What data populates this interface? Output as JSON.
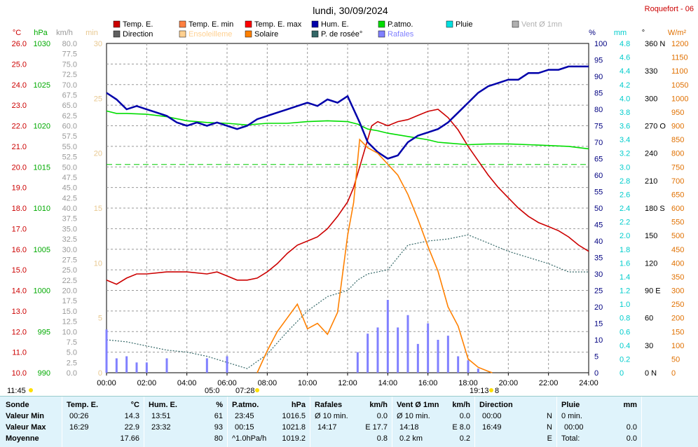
{
  "title": "lundi, 30/09/2024",
  "station": "Roquefort - 06",
  "legend": [
    {
      "label": "Temp. E.",
      "color": "#cc0000"
    },
    {
      "label": "Temp. E. min",
      "color": "#ff8040"
    },
    {
      "label": "Temp. E. max",
      "color": "#ff0000"
    },
    {
      "label": "Hum. E.",
      "color": "#0000aa"
    },
    {
      "label": "P.atmo.",
      "color": "#00dd00"
    },
    {
      "label": "Pluie",
      "color": "#00e0e0"
    },
    {
      "label": "Vent Ø 1mn",
      "color": "#b0b0b0"
    },
    {
      "label": "Direction",
      "color": "#606060"
    },
    {
      "label": "Ensoleilleme",
      "color": "#ffd090"
    },
    {
      "label": "Solaire",
      "color": "#ff8000"
    },
    {
      "label": "P. de rosée°",
      "color": "#336666"
    },
    {
      "label": "Rafales",
      "color": "#8080ff"
    }
  ],
  "axis_units": {
    "temp": "°C",
    "press": "hPa",
    "wind": "km/h",
    "min": "min",
    "hum": "%",
    "rain": "mm",
    "dir": "°",
    "solar": "W/m²"
  },
  "axis_ticks": {
    "temp": [
      "26.0",
      "25.0",
      "24.0",
      "23.0",
      "22.0",
      "21.0",
      "20.0",
      "19.0",
      "18.0",
      "17.0",
      "16.0",
      "15.0",
      "14.0",
      "13.0",
      "12.0",
      "11.0",
      "10.0"
    ],
    "press": [
      "1030",
      "1025",
      "1020",
      "1015",
      "1010",
      "1005",
      "1000",
      "995",
      "990"
    ],
    "wind": [
      "80.0",
      "77.5",
      "75.0",
      "72.5",
      "70.0",
      "67.5",
      "65.0",
      "62.5",
      "60.0",
      "57.5",
      "55.0",
      "52.5",
      "50.0",
      "47.5",
      "45.0",
      "42.5",
      "40.0",
      "37.5",
      "35.0",
      "32.5",
      "30.0",
      "27.5",
      "25.0",
      "22.5",
      "20.0",
      "17.5",
      "15.0",
      "12.5",
      "10.0",
      "7.5",
      "5.0",
      "2.5",
      "0.0"
    ],
    "min": [
      "30",
      "25",
      "20",
      "15",
      "10",
      "5",
      "0"
    ],
    "hum": [
      "100",
      "95",
      "90",
      "85",
      "80",
      "75",
      "70",
      "65",
      "60",
      "55",
      "50",
      "45",
      "40",
      "35",
      "30",
      "25",
      "20",
      "15",
      "10",
      "5",
      "0"
    ],
    "rain": [
      "4.8",
      "4.6",
      "4.4",
      "4.2",
      "4.0",
      "3.8",
      "3.6",
      "3.4",
      "3.2",
      "3.0",
      "2.8",
      "2.6",
      "2.4",
      "2.2",
      "2.0",
      "1.8",
      "1.6",
      "1.4",
      "1.2",
      "1.0",
      "0.8",
      "0.6",
      "0.4",
      "0.2",
      "0"
    ],
    "dir": [
      "360 N",
      "330",
      "300",
      "270 O",
      "240",
      "210",
      "180 S",
      "150",
      "120",
      "90 E",
      "60",
      "30",
      "0 N"
    ],
    "solar": [
      "1200",
      "1150",
      "1100",
      "1050",
      "1000",
      "950",
      "900",
      "850",
      "800",
      "750",
      "700",
      "650",
      "600",
      "550",
      "500",
      "450",
      "400",
      "350",
      "300",
      "250",
      "200",
      "150",
      "100",
      "50",
      "0"
    ]
  },
  "x_ticks": [
    "00:00",
    "02:00",
    "04:00",
    "06:00",
    "08:00",
    "10:00",
    "12:00",
    "14:00",
    "16:00",
    "18:00",
    "20:00",
    "22:00",
    "24:00"
  ],
  "sun_labels": {
    "daylength": "11:45",
    "sunrise": "05:0",
    "sunrise2": "07:28",
    "sunset": "19:13",
    "sunset2": "8"
  },
  "chart_data": {
    "type": "line",
    "x_unit": "hour",
    "xlim": [
      0,
      24
    ],
    "series": [
      {
        "name": "Temp. E.",
        "axis": "°C",
        "color": "#cc0000",
        "x": [
          0,
          0.5,
          1,
          1.5,
          2,
          3,
          4,
          5,
          5.5,
          6,
          6.5,
          7,
          7.5,
          8,
          8.5,
          9,
          9.5,
          10,
          10.5,
          11,
          11.5,
          12,
          12.3,
          12.6,
          12.9,
          13.2,
          13.5,
          14,
          14.5,
          15,
          15.5,
          16,
          16.5,
          17,
          17.5,
          18,
          18.5,
          19,
          19.5,
          20,
          20.5,
          21,
          21.5,
          22,
          22.5,
          23,
          23.5,
          24
        ],
        "y": [
          14.5,
          14.3,
          14.6,
          14.8,
          14.8,
          14.9,
          14.9,
          14.8,
          14.9,
          14.7,
          14.5,
          14.5,
          14.6,
          14.9,
          15.3,
          15.8,
          16.2,
          16.4,
          16.6,
          17.0,
          17.6,
          18.3,
          19.0,
          20.0,
          21.0,
          22.0,
          22.2,
          22.0,
          22.2,
          22.3,
          22.5,
          22.7,
          22.8,
          22.4,
          21.8,
          21.0,
          20.3,
          19.6,
          19.0,
          18.5,
          18.0,
          17.6,
          17.3,
          17.1,
          16.9,
          16.6,
          16.2,
          15.9
        ]
      },
      {
        "name": "P.atmo.",
        "axis": "hPa",
        "color": "#00dd00",
        "x": [
          0,
          0.5,
          1,
          2,
          3,
          4,
          5,
          6,
          7,
          8,
          9,
          10,
          11,
          12,
          12.5,
          13,
          13.5,
          14,
          15,
          16,
          16.5,
          17,
          18,
          19,
          20,
          21,
          22,
          23,
          24
        ],
        "y": [
          1021.8,
          1021.5,
          1021.5,
          1021.4,
          1021.1,
          1020.6,
          1020.4,
          1020.3,
          1020.1,
          1020.3,
          1020.3,
          1020.5,
          1020.6,
          1020.5,
          1020.2,
          1019.6,
          1019.4,
          1019.1,
          1018.7,
          1018.3,
          1018.0,
          1017.9,
          1017.7,
          1017.8,
          1017.8,
          1017.7,
          1017.6,
          1017.5,
          1017.2
        ]
      },
      {
        "name": "Hum. E.",
        "axis": "%",
        "color": "#0000aa",
        "x": [
          0,
          0.5,
          1,
          1.5,
          2,
          2.5,
          3,
          3.5,
          4,
          4.5,
          5,
          5.5,
          6,
          6.5,
          7,
          7.5,
          8,
          8.5,
          9,
          9.5,
          10,
          10.5,
          11,
          11.5,
          12,
          12.3,
          12.6,
          13,
          13.5,
          14,
          14.5,
          15,
          15.5,
          16,
          16.5,
          17,
          17.5,
          18,
          18.5,
          19,
          19.5,
          20,
          20.5,
          21,
          21.5,
          22,
          22.5,
          23,
          23.5,
          24
        ],
        "y": [
          85,
          83,
          80,
          81,
          80,
          79,
          78,
          76,
          75,
          76,
          75,
          76,
          75,
          74,
          75,
          77,
          78,
          79,
          80,
          81,
          82,
          81,
          83,
          82,
          84,
          80,
          76,
          70,
          67,
          65,
          66,
          70,
          72,
          73,
          74,
          76,
          79,
          82,
          85,
          87,
          88,
          89,
          89,
          91,
          91,
          92,
          92,
          93,
          93,
          93
        ],
        "x2": null
      },
      {
        "name": "P. de rosée°",
        "axis": "°C",
        "color": "#336666",
        "x": [
          0,
          1,
          2,
          3,
          4,
          5,
          6,
          7,
          8,
          9,
          10,
          11,
          12,
          12.5,
          13,
          14,
          15,
          16,
          17,
          18,
          19,
          20,
          21,
          22,
          23,
          24
        ],
        "y": [
          11.6,
          11.5,
          11.3,
          11.1,
          11.0,
          10.8,
          10.5,
          10.2,
          10.9,
          12.0,
          13.0,
          13.7,
          14.0,
          14.5,
          14.8,
          15.0,
          16.2,
          16.4,
          16.5,
          16.7,
          16.3,
          15.9,
          15.6,
          15.3,
          14.9,
          14.9
        ]
      },
      {
        "name": "Solaire",
        "axis": "W/m²",
        "color": "#ff8000",
        "x": [
          7.5,
          8,
          8.5,
          9,
          9.5,
          10,
          10.5,
          11,
          11.5,
          12,
          12.3,
          12.6,
          13,
          13.5,
          14,
          14.5,
          15,
          15.5,
          16,
          16.5,
          17,
          17.5,
          18,
          18.5,
          19,
          19.2
        ],
        "y": [
          0,
          80,
          150,
          200,
          250,
          160,
          180,
          140,
          220,
          500,
          620,
          850,
          820,
          800,
          760,
          720,
          650,
          560,
          460,
          370,
          240,
          170,
          50,
          20,
          5,
          0
        ]
      },
      {
        "name": "Rafales",
        "axis": "km/h",
        "color": "#8080ff",
        "x": [
          0,
          0.5,
          1,
          1.5,
          2,
          3,
          4,
          5,
          6,
          6.5,
          7,
          8,
          9,
          10,
          11,
          12,
          12.5,
          13,
          13.5,
          14,
          14.5,
          15,
          15.5,
          16,
          16.5,
          17,
          17.5,
          18,
          18.5,
          19
        ],
        "y": [
          10.5,
          3.5,
          4,
          2.5,
          2.5,
          3.5,
          0,
          3.5,
          4,
          0,
          0,
          0,
          0,
          0,
          0,
          0,
          5,
          9.5,
          11,
          17.7,
          11,
          14,
          7,
          12,
          8,
          9,
          4,
          3,
          1,
          0
        ]
      }
    ],
    "ylim": {
      "temp": [
        10,
        26
      ],
      "press": [
        990,
        1030
      ],
      "hum": [
        0,
        100
      ],
      "solar": [
        0,
        1200
      ],
      "wind": [
        0,
        80
      ]
    }
  },
  "table": {
    "headers": [
      "Sonde",
      "Temp. E.",
      "°C",
      "Hum. E.",
      "%",
      "P.atmo.",
      "hPa",
      "Rafales",
      "km/h",
      "Vent Ø 1mn",
      "km/h",
      "Direction",
      "Pluie",
      "mm"
    ],
    "row_labels": [
      "Valeur Min",
      "Valeur Max",
      "Moyenne"
    ],
    "temp": [
      [
        "00:26",
        "14.3"
      ],
      [
        "16:29",
        "22.9"
      ],
      [
        "",
        "17.66"
      ]
    ],
    "hum": [
      [
        "13:51",
        "61"
      ],
      [
        "23:32",
        "93"
      ],
      [
        "",
        "80"
      ]
    ],
    "press": [
      [
        "23:45",
        "1016.5"
      ],
      [
        "00:15",
        "1021.8"
      ],
      [
        "^1.0hPa/h",
        "1019.2"
      ]
    ],
    "rafales": [
      [
        "Ø 10 min.",
        "0.0"
      ],
      [
        "14:17",
        "E 17.7"
      ],
      [
        "",
        "0.8"
      ]
    ],
    "vent": [
      [
        "Ø 10 min.",
        "0.0"
      ],
      [
        "14:18",
        "E 8.0"
      ],
      [
        "0.2 km",
        "0.2"
      ]
    ],
    "direction": [
      [
        "00:00",
        "N"
      ],
      [
        "16:49",
        "N"
      ],
      [
        "",
        "E"
      ]
    ],
    "pluie": [
      [
        "0 min.",
        ""
      ],
      [
        "00:00",
        "0.0"
      ],
      [
        "Total:",
        "0.0"
      ]
    ]
  }
}
